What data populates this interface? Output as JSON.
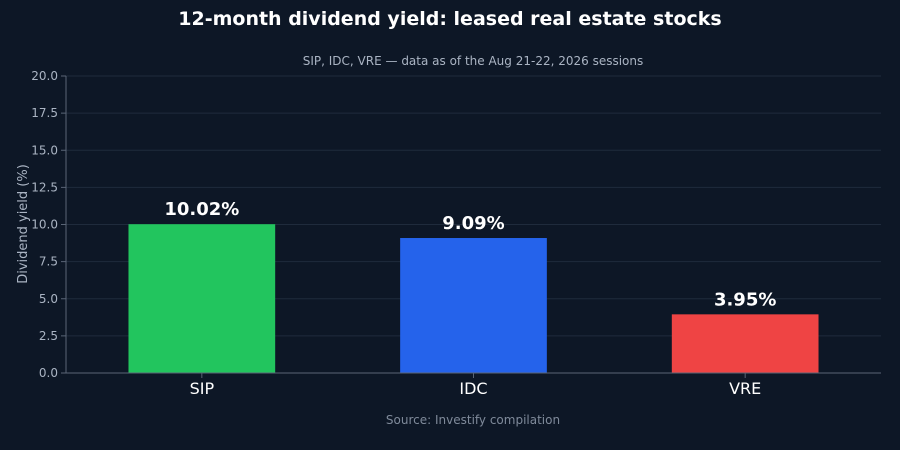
{
  "chart_data": {
    "type": "bar",
    "title": "12-month dividend yield: leased real estate stocks",
    "subtitle": "SIP, IDC, VRE — data as of the Aug 21-22, 2026 sessions",
    "xlabel": "",
    "ylabel": "Dividend yield (%)",
    "ylim": [
      0,
      20
    ],
    "yticks": [
      "0.0",
      "2.5",
      "5.0",
      "7.5",
      "10.0",
      "12.5",
      "15.0",
      "17.5",
      "20.0"
    ],
    "categories": [
      "SIP",
      "IDC",
      "VRE"
    ],
    "values": [
      10.02,
      9.09,
      3.95
    ],
    "value_labels": [
      "10.02%",
      "9.09%",
      "3.95%"
    ],
    "colors": [
      "#22c55e",
      "#2563eb",
      "#ef4444"
    ],
    "grid": true,
    "source": "Source: Investify compilation"
  }
}
